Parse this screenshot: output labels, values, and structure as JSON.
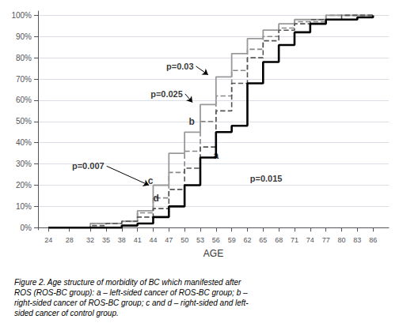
{
  "chart_data": {
    "type": "step",
    "xlabel": "AGE",
    "xlim": [
      22,
      89
    ],
    "ylim": [
      -1,
      102
    ],
    "xticks": [
      24,
      28,
      32,
      35,
      38,
      41,
      44,
      47,
      50,
      53,
      56,
      59,
      62,
      65,
      68,
      71,
      74,
      77,
      80,
      83,
      86
    ],
    "yticks": [
      {
        "value": 0,
        "label": "0%"
      },
      {
        "value": 10,
        "label": "10%"
      },
      {
        "value": 20,
        "label": "20%"
      },
      {
        "value": 30,
        "label": "30%"
      },
      {
        "value": 40,
        "label": "40%"
      },
      {
        "value": 50,
        "label": "50%"
      },
      {
        "value": 60,
        "label": "60%"
      },
      {
        "value": 70,
        "label": "70%"
      },
      {
        "value": 80,
        "label": "80%"
      },
      {
        "value": 90,
        "label": "90%"
      },
      {
        "value": 100,
        "label": "100%"
      }
    ],
    "grid": "y",
    "series": [
      {
        "color": "#000000",
        "line_style": "solid",
        "x": [
          24,
          28,
          32,
          35,
          38,
          41,
          44,
          47,
          47,
          50,
          50,
          53,
          53,
          56,
          56,
          59,
          59,
          62,
          62,
          65,
          65,
          68,
          68,
          71,
          71,
          74,
          74,
          77,
          77,
          80,
          83,
          86
        ],
        "values": [
          0,
          0,
          0,
          0,
          1,
          2,
          5,
          5,
          10,
          10,
          20,
          20,
          33,
          33,
          45,
          45,
          48,
          48,
          68,
          68,
          78,
          78,
          86,
          86,
          92,
          92,
          96,
          96,
          98,
          98,
          99,
          100
        ]
      },
      {
        "color": "#555555",
        "line_style": "dashed",
        "x": [
          24,
          28,
          32,
          35,
          38,
          41,
          41,
          44,
          44,
          47,
          47,
          50,
          50,
          53,
          53,
          56,
          56,
          59,
          59,
          62,
          62,
          65,
          65,
          68,
          68,
          71,
          71,
          74,
          74,
          77,
          80,
          83,
          86
        ],
        "values": [
          0,
          0,
          1,
          2,
          3,
          3,
          5,
          5,
          9,
          9,
          18,
          18,
          28,
          28,
          38,
          38,
          55,
          55,
          68,
          68,
          80,
          80,
          88,
          88,
          93,
          93,
          96,
          96,
          98,
          98,
          100,
          100,
          100
        ]
      },
      {
        "color": "#999999",
        "line_style": "solid",
        "x": [
          24,
          28,
          32,
          35,
          38,
          41,
          41,
          44,
          44,
          47,
          47,
          50,
          50,
          53,
          53,
          56,
          56,
          59,
          59,
          62,
          62,
          65,
          65,
          68,
          68,
          71,
          71,
          74,
          77,
          80,
          83,
          86
        ],
        "values": [
          0,
          0,
          2,
          2,
          3,
          3,
          8,
          8,
          20,
          20,
          35,
          35,
          45,
          45,
          58,
          58,
          71,
          71,
          82,
          82,
          89,
          89,
          93,
          93,
          96,
          96,
          98,
          98,
          100,
          100,
          100,
          100
        ]
      },
      {
        "color": "#888888",
        "line_style": "dashed",
        "x": [
          24,
          28,
          32,
          35,
          38,
          41,
          41,
          44,
          44,
          47,
          47,
          50,
          50,
          53,
          53,
          56,
          56,
          59,
          59,
          62,
          62,
          65,
          65,
          68,
          68,
          71,
          71,
          74,
          77,
          80,
          83,
          86
        ],
        "values": [
          0,
          0,
          2,
          2,
          3,
          3,
          7,
          7,
          14,
          14,
          26,
          26,
          36,
          36,
          50,
          50,
          62,
          62,
          74,
          74,
          84,
          84,
          90,
          90,
          94,
          94,
          97,
          97,
          100,
          100,
          100,
          100
        ]
      }
    ],
    "annotations": [
      {
        "text": "p=0.03",
        "x": 46.5,
        "y": 76,
        "arrow_to": [
          54.5,
          72
        ]
      },
      {
        "text": "p=0.025",
        "x": 43.5,
        "y": 63,
        "arrow_to": [
          51.5,
          59
        ]
      },
      {
        "text": "p=0.007",
        "x": 28.5,
        "y": 29,
        "arrow_to": [
          43.2,
          20
        ]
      },
      {
        "text": "p=0.015",
        "x": 62.5,
        "y": 23
      },
      {
        "text": "a",
        "x": 55.5,
        "y": 34
      },
      {
        "text": "b",
        "x": 50.8,
        "y": 50
      },
      {
        "text": "c",
        "x": 43.0,
        "y": 22
      },
      {
        "text": "d",
        "x": 44.0,
        "y": 14
      }
    ],
    "caption": "Figure 2. Age structure of morbidity of BC which manifested after\nROS (ROS-BC group): a – left-sided cancer of ROS-BC group; b –\nright-sided cancer of ROS-BC group; c and d – right-sided and left-\nsided cancer of control group."
  }
}
